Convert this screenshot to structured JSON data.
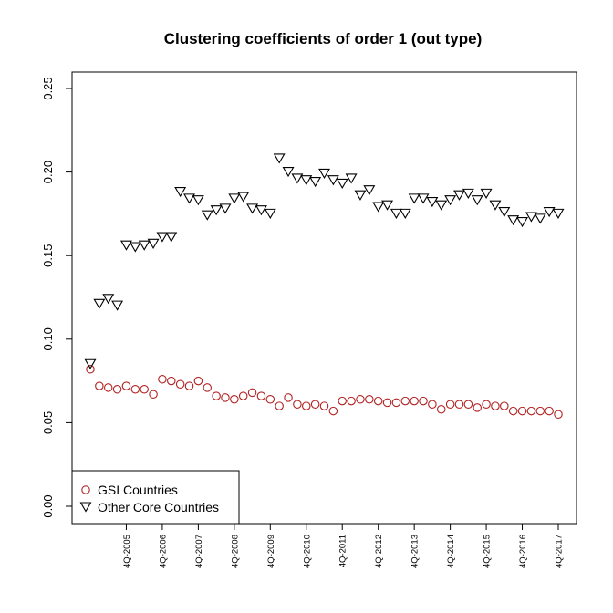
{
  "chart_data": {
    "type": "scatter",
    "title": "Clustering coefficients of order 1 (out type)",
    "xlabel": "",
    "ylabel": "",
    "ylim": [
      0,
      0.25
    ],
    "ytick_labels": [
      "0.00",
      "0.05",
      "0.10",
      "0.15",
      "0.20",
      "0.25"
    ],
    "yticks": [
      0,
      0.05,
      0.1,
      0.15,
      0.2,
      0.25
    ],
    "xlim": [
      0,
      53
    ],
    "x_tick_labels": [
      "4Q-2005",
      "4Q-2006",
      "4Q-2007",
      "4Q-2008",
      "4Q-2009",
      "4Q-2010",
      "4Q-2011",
      "4Q-2012",
      "4Q-2013",
      "4Q-2014",
      "4Q-2015",
      "4Q-2016",
      "4Q-2017"
    ],
    "x_tick_positions": [
      5,
      9,
      13,
      17,
      21,
      25,
      29,
      33,
      37,
      41,
      45,
      49,
      53
    ],
    "legend_position": "bottom-left",
    "series": [
      {
        "name": "GSI Countries",
        "marker": "circle",
        "color": "#b22222",
        "x": [
          1,
          2,
          3,
          4,
          5,
          6,
          7,
          8,
          9,
          10,
          11,
          12,
          13,
          14,
          15,
          16,
          17,
          18,
          19,
          20,
          21,
          22,
          23,
          24,
          25,
          26,
          27,
          28,
          29,
          30,
          31,
          32,
          33,
          34,
          35,
          36,
          37,
          38,
          39,
          40,
          41,
          42,
          43,
          44,
          45,
          46,
          47,
          48,
          49,
          50,
          51,
          52,
          53
        ],
        "values": [
          0.082,
          0.072,
          0.071,
          0.07,
          0.072,
          0.07,
          0.07,
          0.067,
          0.076,
          0.075,
          0.073,
          0.072,
          0.075,
          0.071,
          0.066,
          0.065,
          0.064,
          0.066,
          0.068,
          0.066,
          0.064,
          0.06,
          0.065,
          0.061,
          0.06,
          0.061,
          0.06,
          0.057,
          0.063,
          0.063,
          0.064,
          0.064,
          0.063,
          0.062,
          0.062,
          0.063,
          0.063,
          0.063,
          0.061,
          0.058,
          0.061,
          0.061,
          0.061,
          0.059,
          0.061,
          0.06,
          0.06,
          0.057,
          0.057,
          0.057,
          0.057,
          0.057,
          0.055
        ]
      },
      {
        "name": "Other Core Countries",
        "marker": "triangle-down",
        "color": "#000000",
        "x": [
          1,
          2,
          3,
          4,
          5,
          6,
          7,
          8,
          9,
          10,
          11,
          12,
          13,
          14,
          15,
          16,
          17,
          18,
          19,
          20,
          21,
          22,
          23,
          24,
          25,
          26,
          27,
          28,
          29,
          30,
          31,
          32,
          33,
          34,
          35,
          36,
          37,
          38,
          39,
          40,
          41,
          42,
          43,
          44,
          45,
          46,
          47,
          48,
          49,
          50,
          51,
          52,
          53
        ],
        "values": [
          0.086,
          0.122,
          0.125,
          0.121,
          0.157,
          0.156,
          0.157,
          0.158,
          0.162,
          0.162,
          0.189,
          0.185,
          0.184,
          0.175,
          0.178,
          0.179,
          0.185,
          0.186,
          0.179,
          0.178,
          0.176,
          0.209,
          0.201,
          0.197,
          0.196,
          0.195,
          0.2,
          0.196,
          0.194,
          0.197,
          0.187,
          0.19,
          0.18,
          0.181,
          0.176,
          0.176,
          0.185,
          0.185,
          0.183,
          0.181,
          0.184,
          0.187,
          0.188,
          0.184,
          0.188,
          0.181,
          0.177,
          0.172,
          0.171,
          0.174,
          0.173,
          0.177,
          0.176
        ]
      }
    ]
  }
}
